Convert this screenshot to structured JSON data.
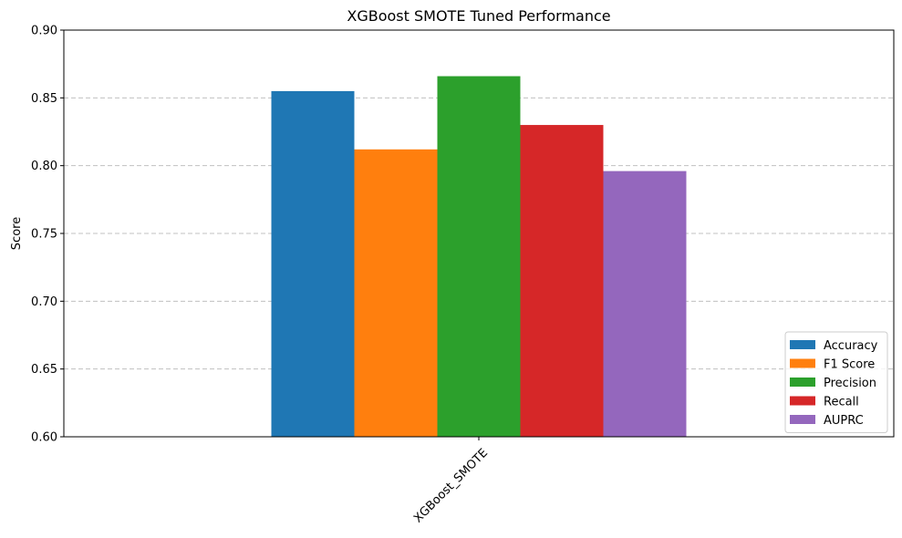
{
  "chart_data": {
    "type": "bar",
    "title": "XGBoost SMOTE Tuned Performance",
    "xlabel": "",
    "ylabel": "Score",
    "categories": [
      "XGBoost_SMOTE"
    ],
    "series": [
      {
        "name": "Accuracy",
        "values": [
          0.855
        ],
        "color": "#1f77b4"
      },
      {
        "name": "F1 Score",
        "values": [
          0.812
        ],
        "color": "#ff7f0e"
      },
      {
        "name": "Precision",
        "values": [
          0.866
        ],
        "color": "#2ca02c"
      },
      {
        "name": "Recall",
        "values": [
          0.83
        ],
        "color": "#d62728"
      },
      {
        "name": "AUPRC",
        "values": [
          0.796
        ],
        "color": "#9467bd"
      }
    ],
    "ylim": [
      0.6,
      0.9
    ],
    "yticks": [
      "0.60",
      "0.65",
      "0.70",
      "0.75",
      "0.80",
      "0.85",
      "0.90"
    ],
    "grid": "horizontal dashed",
    "legend_position": "bottom-right",
    "xtick_rotation": "45deg"
  }
}
